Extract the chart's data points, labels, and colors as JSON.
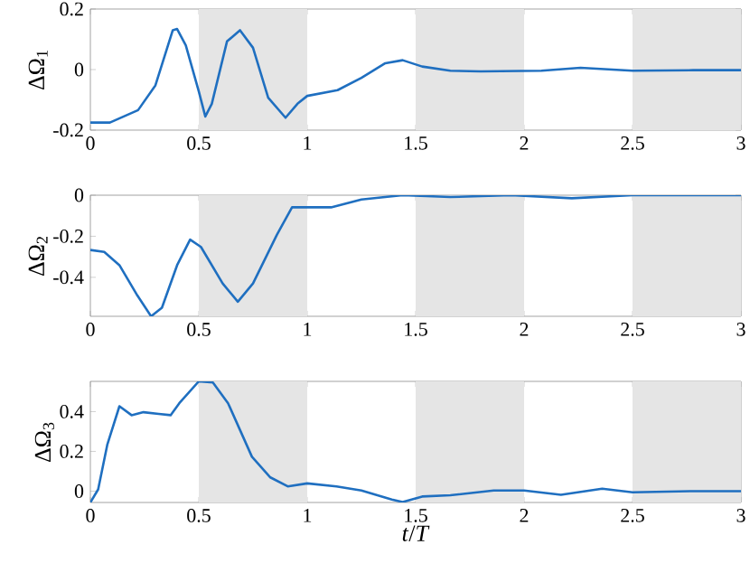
{
  "chart_data": [
    {
      "type": "line",
      "ylabel": "ΔΩ$_{1}$",
      "xlim": [
        0,
        3
      ],
      "xticks": [
        0,
        0.5,
        1,
        1.5,
        2,
        2.5,
        3
      ],
      "ylim": [
        -0.2,
        0.2
      ],
      "yticks": [
        -0.2,
        0,
        0.2
      ],
      "x": [
        0,
        0.09,
        0.22,
        0.3,
        0.38,
        0.4,
        0.44,
        0.5,
        0.53,
        0.56,
        0.63,
        0.69,
        0.75,
        0.82,
        0.9,
        0.955,
        1.0,
        1.14,
        1.25,
        1.36,
        1.44,
        1.53,
        1.66,
        1.8,
        2.08,
        2.26,
        2.5,
        2.78,
        3
      ],
      "series": [
        {
          "color": "#1f6fc0",
          "values": [
            -0.175,
            -0.175,
            -0.134,
            -0.052,
            0.13,
            0.134,
            0.08,
            -0.072,
            -0.155,
            -0.113,
            0.093,
            0.13,
            0.072,
            -0.093,
            -0.159,
            -0.113,
            -0.087,
            -0.068,
            -0.027,
            0.021,
            0.031,
            0.01,
            -0.004,
            -0.006,
            -0.004,
            0.006,
            -0.004,
            -0.002,
            -0.002
          ]
        }
      ],
      "bands": [
        {
          "axis": "x",
          "from": 0.5,
          "to": 1,
          "color": "#e5e5e5"
        },
        {
          "axis": "x",
          "from": 1.5,
          "to": 2,
          "color": "#e5e5e5"
        },
        {
          "axis": "x",
          "from": 2.5,
          "to": 3,
          "color": "#e5e5e5"
        }
      ]
    },
    {
      "type": "line",
      "ylabel": "ΔΩ$_{2}$",
      "xlim": [
        0,
        3
      ],
      "xticks": [
        0,
        0.5,
        1,
        1.5,
        2,
        2.5,
        3
      ],
      "ylim": [
        -0.59,
        0
      ],
      "yticks": [
        -0.4,
        -0.2,
        0
      ],
      "x": [
        0,
        0.064,
        0.134,
        0.217,
        0.28,
        0.33,
        0.4,
        0.46,
        0.51,
        0.61,
        0.68,
        0.75,
        0.86,
        0.93,
        1.0,
        1.11,
        1.25,
        1.44,
        1.66,
        1.94,
        2.22,
        2.5,
        2.69,
        3
      ],
      "series": [
        {
          "color": "#1f6fc0",
          "values": [
            -0.267,
            -0.276,
            -0.341,
            -0.489,
            -0.59,
            -0.548,
            -0.341,
            -0.216,
            -0.252,
            -0.43,
            -0.519,
            -0.43,
            -0.193,
            -0.059,
            -0.059,
            -0.059,
            -0.021,
            0,
            -0.009,
            0,
            -0.015,
            0,
            0,
            0
          ]
        }
      ],
      "bands": [
        {
          "axis": "x",
          "from": 0.5,
          "to": 1,
          "color": "#e5e5e5"
        },
        {
          "axis": "x",
          "from": 1.5,
          "to": 2,
          "color": "#e5e5e5"
        },
        {
          "axis": "x",
          "from": 2.5,
          "to": 3,
          "color": "#e5e5e5"
        }
      ]
    },
    {
      "type": "line",
      "ylabel": "ΔΩ$_{3}$",
      "xlabel": "*t*/*T*",
      "xlim": [
        0,
        3
      ],
      "xticks": [
        0,
        0.5,
        1,
        1.5,
        2,
        2.5,
        3
      ],
      "ylim": [
        -0.057,
        0.552
      ],
      "yticks": [
        0,
        0.2,
        0.4
      ],
      "x": [
        0,
        0.036,
        0.078,
        0.134,
        0.19,
        0.245,
        0.315,
        0.37,
        0.41,
        0.5,
        0.565,
        0.635,
        0.745,
        0.83,
        0.91,
        1.0,
        1.135,
        1.25,
        1.39,
        1.44,
        1.53,
        1.66,
        1.86,
        2.0,
        2.17,
        2.36,
        2.5,
        2.78,
        3
      ],
      "series": [
        {
          "color": "#1f6fc0",
          "values": [
            -0.057,
            0.009,
            0.233,
            0.427,
            0.382,
            0.397,
            0.388,
            0.382,
            0.442,
            0.552,
            0.546,
            0.442,
            0.173,
            0.069,
            0.024,
            0.039,
            0.024,
            0.003,
            -0.042,
            -0.055,
            -0.027,
            -0.021,
            0.003,
            0.003,
            -0.018,
            0.012,
            -0.006,
            0,
            0
          ]
        }
      ],
      "bands": [
        {
          "axis": "x",
          "from": 0.5,
          "to": 1,
          "color": "#e5e5e5"
        },
        {
          "axis": "x",
          "from": 1.5,
          "to": 2,
          "color": "#e5e5e5"
        },
        {
          "axis": "x",
          "from": 2.5,
          "to": 3,
          "color": "#e5e5e5"
        }
      ]
    }
  ]
}
